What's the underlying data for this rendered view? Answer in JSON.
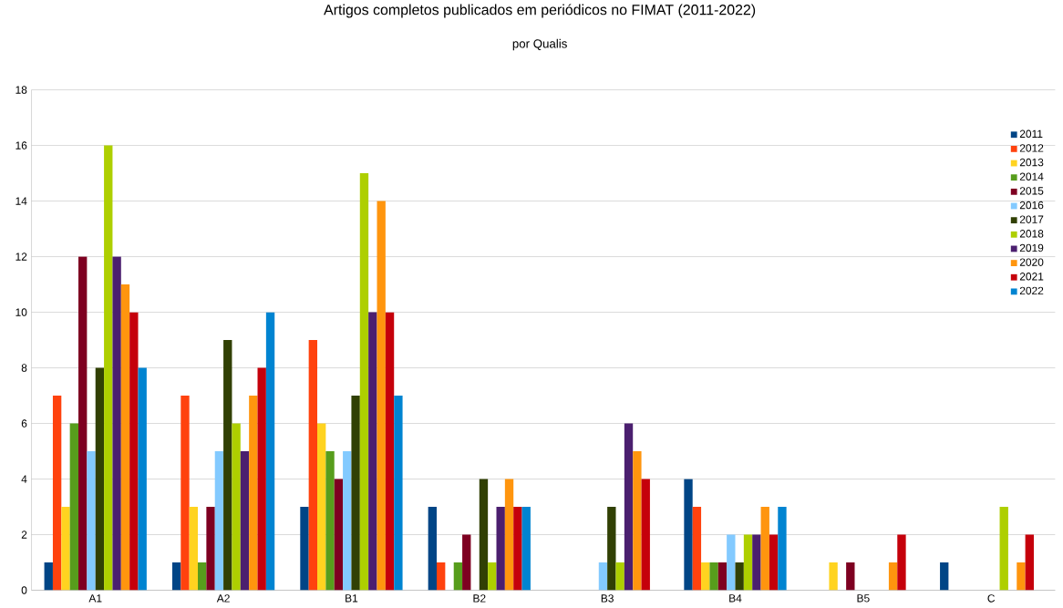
{
  "chart_data": {
    "type": "bar",
    "title": "Artigos completos publicados em periódicos no FIMAT (2011-2022)",
    "subtitle": "por Qualis",
    "categories": [
      "A1",
      "A2",
      "B1",
      "B2",
      "B3",
      "B4",
      "B5",
      "C"
    ],
    "series": [
      {
        "name": "2011",
        "color": "#004586",
        "values": [
          1,
          1,
          3,
          3,
          0,
          4,
          0,
          1
        ]
      },
      {
        "name": "2012",
        "color": "#ff420e",
        "values": [
          7,
          7,
          9,
          1,
          0,
          3,
          0,
          0
        ]
      },
      {
        "name": "2013",
        "color": "#ffd320",
        "values": [
          3,
          3,
          6,
          0,
          0,
          1,
          1,
          0
        ]
      },
      {
        "name": "2014",
        "color": "#579d1c",
        "values": [
          6,
          1,
          5,
          1,
          0,
          1,
          0,
          0
        ]
      },
      {
        "name": "2015",
        "color": "#7e0021",
        "values": [
          12,
          3,
          4,
          2,
          0,
          1,
          1,
          0
        ]
      },
      {
        "name": "2016",
        "color": "#83caff",
        "values": [
          5,
          5,
          5,
          0,
          1,
          2,
          0,
          0
        ]
      },
      {
        "name": "2017",
        "color": "#314004",
        "values": [
          8,
          9,
          7,
          4,
          3,
          1,
          0,
          0
        ]
      },
      {
        "name": "2018",
        "color": "#aecf00",
        "values": [
          16,
          6,
          15,
          1,
          1,
          2,
          0,
          3
        ]
      },
      {
        "name": "2019",
        "color": "#4b1f6f",
        "values": [
          12,
          5,
          10,
          3,
          6,
          2,
          0,
          0
        ]
      },
      {
        "name": "2020",
        "color": "#ff950e",
        "values": [
          11,
          7,
          14,
          4,
          5,
          3,
          1,
          1
        ]
      },
      {
        "name": "2021",
        "color": "#c5000b",
        "values": [
          10,
          8,
          10,
          3,
          4,
          2,
          2,
          2
        ]
      },
      {
        "name": "2022",
        "color": "#0084d1",
        "values": [
          8,
          10,
          7,
          3,
          0,
          3,
          0,
          null
        ]
      }
    ],
    "ylim": [
      0,
      18
    ],
    "yticks": [
      0,
      2,
      4,
      6,
      8,
      10,
      12,
      14,
      16,
      18
    ],
    "grid": "y",
    "legend": "top right"
  }
}
